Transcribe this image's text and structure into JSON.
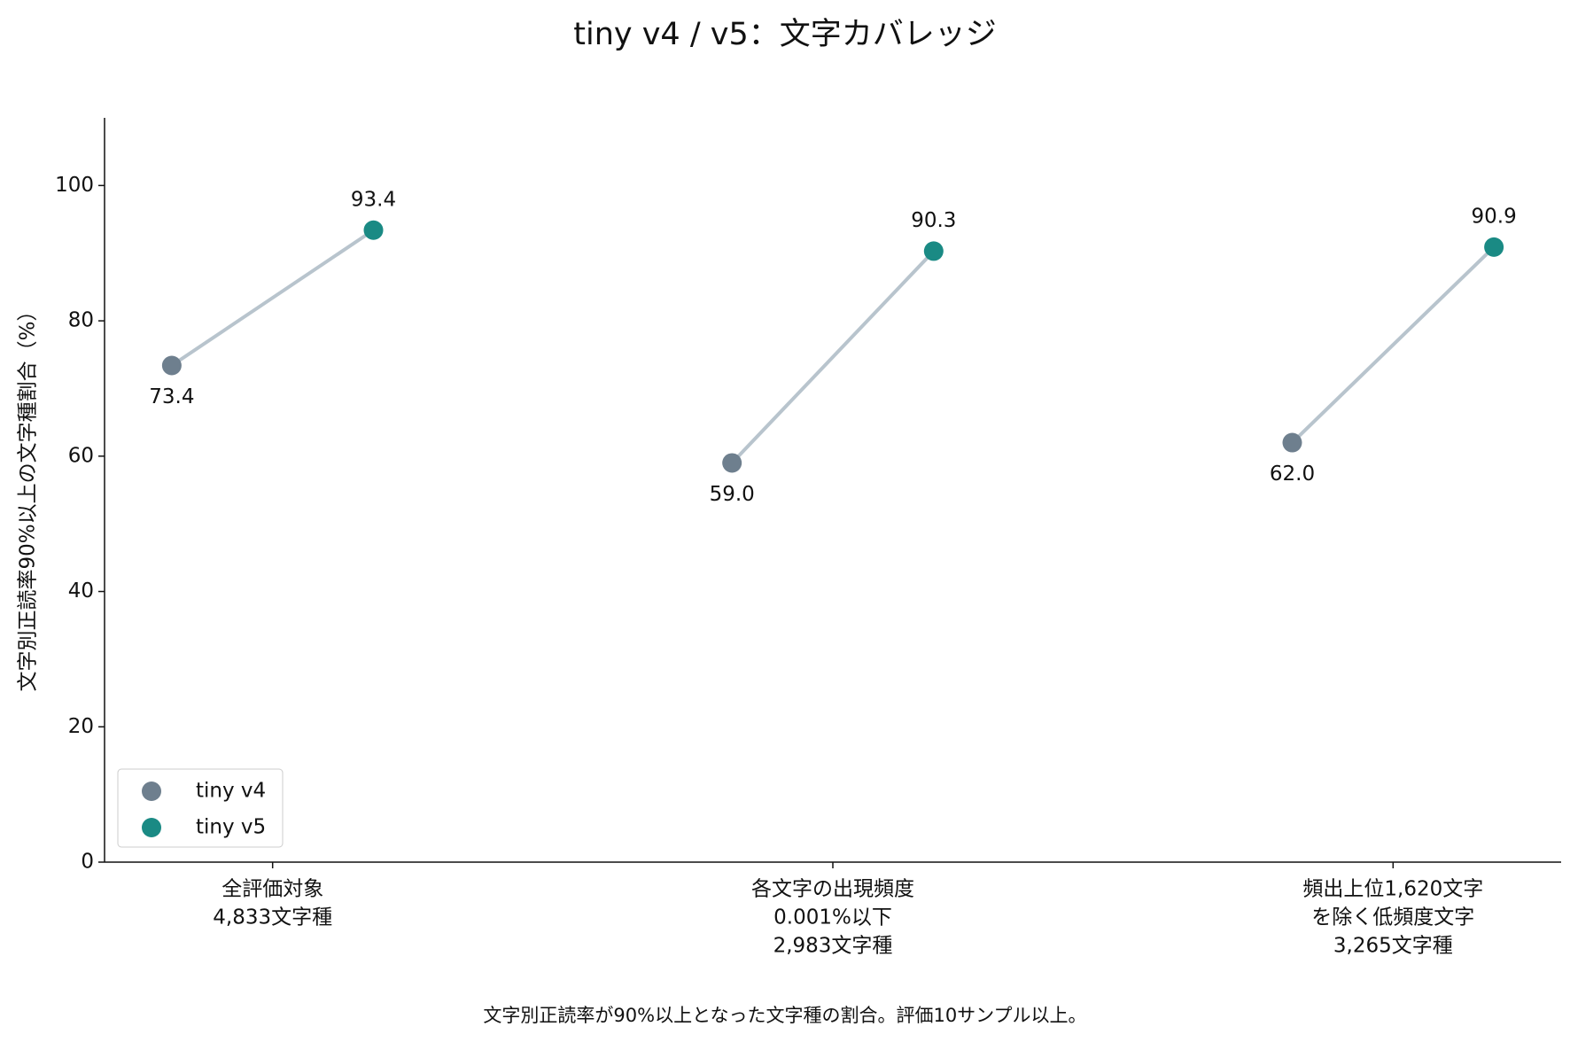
{
  "chart_data": {
    "type": "dumbbell",
    "title": "tiny v4 / v5：文字カバレッジ",
    "y_label": "文字別正読率90%以上の文字種割合（%）",
    "footnote": "文字別正読率が90%以上となった文字種の割合。評価10サンプル以上。",
    "categories": [
      [
        "全評価対象",
        "4,833文字種"
      ],
      [
        "各文字の出現頻度",
        "0.001%以下",
        "2,983文字種"
      ],
      [
        "頻出上位1,620文字",
        "を除く低頻度文字",
        "3,265文字種"
      ]
    ],
    "series": [
      {
        "name": "tiny v4",
        "color": "#6e7f8e",
        "values": [
          73.4,
          59.0,
          62.0
        ],
        "value_labels": [
          "73.4",
          "59.0",
          "62.0"
        ]
      },
      {
        "name": "tiny v5",
        "color": "#1a8a84",
        "values": [
          93.4,
          90.3,
          90.9
        ]
      }
    ],
    "connector_color": "#b8c4cd",
    "ylim": [
      0,
      110
    ],
    "yticks": [
      0,
      20,
      40,
      60,
      80,
      100
    ],
    "legend": "lower left"
  }
}
